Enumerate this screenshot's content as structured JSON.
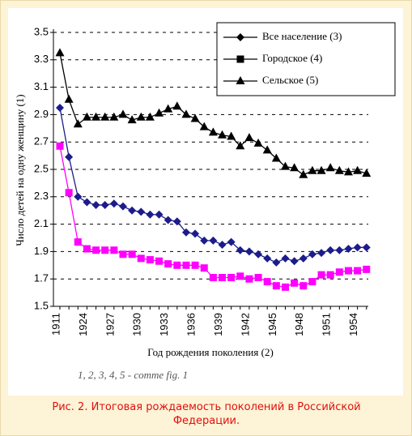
{
  "chart_data": {
    "type": "line",
    "y_label": "Число детей на одну женщину (1)",
    "x_label": "Год рождения поколения (2)",
    "annotation": "1, 2, 3, 4, 5 - comme fig. 1",
    "caption": "Рис. 2. Итоговая рождаемость поколений в Российской Федерации.",
    "categories": [
      "1911",
      null,
      null,
      "1924",
      null,
      null,
      "1927",
      null,
      null,
      "1930",
      null,
      null,
      "1933",
      null,
      null,
      "1936",
      null,
      null,
      "1939",
      null,
      null,
      "1942",
      null,
      null,
      "1945",
      null,
      null,
      "1948",
      null,
      null,
      "1951",
      null,
      null,
      "1954",
      null
    ],
    "series": [
      {
        "name": "Все население (3)",
        "color": "#1c1c8c",
        "marker": "diamond",
        "values": [
          2.95,
          2.59,
          2.3,
          2.26,
          2.24,
          2.24,
          2.25,
          2.23,
          2.2,
          2.19,
          2.17,
          2.17,
          2.13,
          2.12,
          2.04,
          2.03,
          1.98,
          1.98,
          1.95,
          1.97,
          1.91,
          1.9,
          1.88,
          1.85,
          1.82,
          1.85,
          1.83,
          1.85,
          1.88,
          1.89,
          1.91,
          1.91,
          1.92,
          1.93,
          1.93
        ]
      },
      {
        "name": "Городское (4)",
        "color": "#ff00ff",
        "marker": "square",
        "values": [
          2.67,
          2.33,
          1.97,
          1.92,
          1.91,
          1.91,
          1.91,
          1.88,
          1.88,
          1.85,
          1.84,
          1.83,
          1.81,
          1.8,
          1.8,
          1.8,
          1.78,
          1.71,
          1.71,
          1.71,
          1.72,
          1.7,
          1.71,
          1.68,
          1.65,
          1.64,
          1.67,
          1.65,
          1.68,
          1.73,
          1.73,
          1.75,
          1.76,
          1.76,
          1.77
        ]
      },
      {
        "name": "Сельское (5)",
        "color": "#000000",
        "marker": "triangle",
        "values": [
          3.35,
          3.01,
          2.83,
          2.88,
          2.88,
          2.88,
          2.88,
          2.9,
          2.86,
          2.88,
          2.88,
          2.91,
          2.94,
          2.96,
          2.9,
          2.87,
          2.81,
          2.77,
          2.75,
          2.74,
          2.67,
          2.73,
          2.69,
          2.64,
          2.58,
          2.52,
          2.51,
          2.46,
          2.49,
          2.49,
          2.51,
          2.49,
          2.48,
          2.49,
          2.47
        ]
      }
    ],
    "ylim": [
      1.5,
      3.5
    ],
    "yticks": [
      1.5,
      1.7,
      1.9,
      2.1,
      2.3,
      2.5,
      2.7,
      2.9,
      3.1,
      3.3,
      3.5
    ],
    "grid": true,
    "legend": "top-right"
  }
}
